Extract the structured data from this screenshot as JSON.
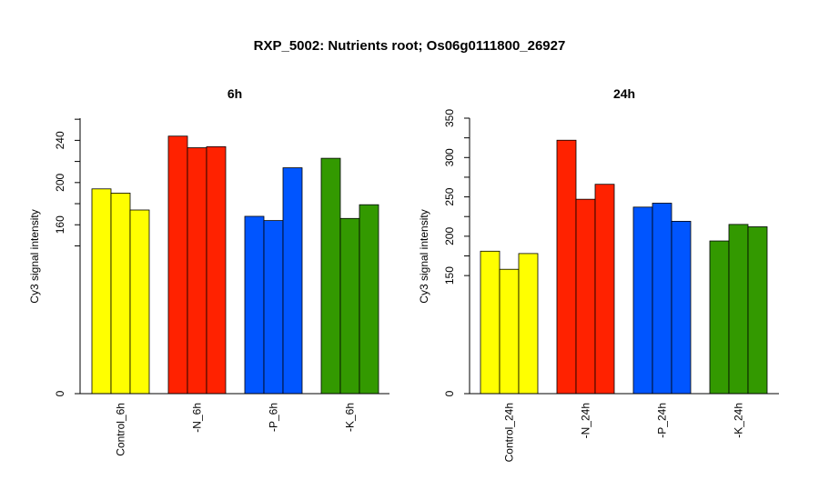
{
  "title": "RXP_5002: Nutrients root; Os06g0111800_26927",
  "chart_data": [
    {
      "type": "bar",
      "title": "6h",
      "ylabel": "Cy3 signal intensity",
      "xlabel": "",
      "ylim": [
        0,
        261
      ],
      "yticks": [
        0,
        160,
        200,
        240
      ],
      "grid": false,
      "categories": [
        "Control_6h",
        "-N_6h",
        "-P_6h",
        "-K_6h"
      ],
      "colors": [
        "#ffff00",
        "#ff2200",
        "#0055ff",
        "#339900"
      ],
      "values": [
        [
          194,
          190,
          174
        ],
        [
          244,
          233,
          234
        ],
        [
          168,
          164,
          214
        ],
        [
          223,
          166,
          179
        ]
      ]
    },
    {
      "type": "bar",
      "title": "24h",
      "ylabel": "Cy3 signal intensity",
      "xlabel": "",
      "ylim": [
        0,
        350
      ],
      "yticks": [
        0,
        150,
        200,
        250,
        300,
        350
      ],
      "grid": false,
      "categories": [
        "Control_24h",
        "-N_24h",
        "-P_24h",
        "-K_24h"
      ],
      "colors": [
        "#ffff00",
        "#ff2200",
        "#0055ff",
        "#339900"
      ],
      "values": [
        [
          181,
          158,
          178
        ],
        [
          322,
          247,
          266
        ],
        [
          237,
          242,
          219
        ],
        [
          194,
          215,
          212
        ]
      ]
    }
  ]
}
